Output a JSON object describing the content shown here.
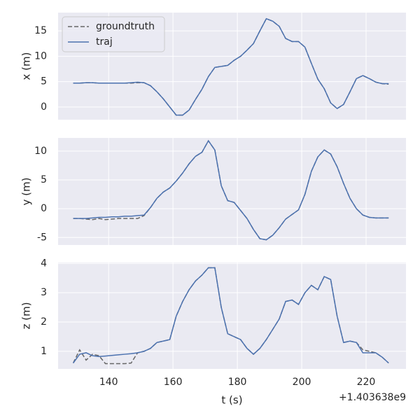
{
  "chart_data": [
    {
      "type": "line",
      "ylabel": "x (m)",
      "legend": "upper left",
      "grid": true,
      "x": [
        129,
        131,
        133,
        135,
        137,
        139,
        141,
        143,
        145,
        147,
        149,
        151,
        153,
        155,
        157,
        159,
        161,
        163,
        165,
        167,
        169,
        171,
        173,
        175,
        177,
        179,
        181,
        183,
        185,
        187,
        189,
        191,
        193,
        195,
        197,
        199,
        201,
        203,
        205,
        207,
        209,
        211,
        213,
        215,
        217,
        219,
        221,
        223,
        225,
        227
      ],
      "xlim": [
        124.3,
        232.4
      ],
      "xticks": [
        140,
        160,
        180,
        200,
        220
      ],
      "ylim": [
        -2.5,
        18.6
      ],
      "yticks": [
        0,
        5,
        10,
        15
      ],
      "series": [
        {
          "name": "groundtruth",
          "color": "#666666",
          "dashed": true,
          "values": [
            4.7,
            4.7,
            4.8,
            4.8,
            4.7,
            4.7,
            4.7,
            4.7,
            4.7,
            4.7,
            4.8,
            4.8,
            4.2,
            3.0,
            1.6,
            0.0,
            -1.6,
            -1.6,
            -0.6,
            1.5,
            3.5,
            6.0,
            7.8,
            8.0,
            8.2,
            9.2,
            10.0,
            11.2,
            12.5,
            15.0,
            17.4,
            16.9,
            15.9,
            13.5,
            12.9,
            12.9,
            11.8,
            8.6,
            5.5,
            3.6,
            0.8,
            -0.3,
            0.5,
            3.0,
            5.6,
            6.2,
            5.6,
            4.9,
            4.6,
            4.5
          ]
        },
        {
          "name": "traj",
          "color": "#4c72b0",
          "dashed": false,
          "values": [
            4.7,
            4.7,
            4.8,
            4.8,
            4.7,
            4.7,
            4.7,
            4.7,
            4.7,
            4.8,
            4.9,
            4.8,
            4.2,
            3.0,
            1.6,
            0.0,
            -1.6,
            -1.6,
            -0.6,
            1.5,
            3.5,
            6.0,
            7.8,
            8.0,
            8.2,
            9.2,
            10.0,
            11.2,
            12.5,
            15.0,
            17.4,
            16.9,
            15.9,
            13.5,
            12.9,
            12.9,
            11.8,
            8.6,
            5.5,
            3.6,
            0.8,
            -0.3,
            0.5,
            3.0,
            5.6,
            6.2,
            5.6,
            4.9,
            4.6,
            4.6
          ]
        }
      ]
    },
    {
      "type": "line",
      "ylabel": "y (m)",
      "grid": true,
      "x": [
        129,
        131,
        133,
        135,
        137,
        139,
        141,
        143,
        145,
        147,
        149,
        151,
        153,
        155,
        157,
        159,
        161,
        163,
        165,
        167,
        169,
        171,
        173,
        175,
        177,
        179,
        181,
        183,
        185,
        187,
        189,
        191,
        193,
        195,
        197,
        199,
        201,
        203,
        205,
        207,
        209,
        211,
        213,
        215,
        217,
        219,
        221,
        223,
        225,
        227
      ],
      "xlim": [
        124.3,
        232.4
      ],
      "xticks": [
        140,
        160,
        180,
        200,
        220
      ],
      "ylim": [
        -6.3,
        12.3
      ],
      "yticks": [
        -5,
        0,
        5,
        10
      ],
      "series": [
        {
          "name": "groundtruth",
          "color": "#666666",
          "dashed": true,
          "values": [
            -1.7,
            -1.7,
            -1.8,
            -1.9,
            -1.7,
            -1.9,
            -1.8,
            -1.7,
            -1.7,
            -1.7,
            -1.7,
            -1.2,
            0.2,
            1.8,
            2.9,
            3.6,
            4.8,
            6.2,
            7.8,
            9.1,
            9.8,
            11.8,
            10.2,
            4.0,
            1.4,
            1.1,
            -0.3,
            -1.7,
            -3.6,
            -5.2,
            -5.4,
            -4.6,
            -3.3,
            -1.8,
            -1.0,
            -0.2,
            2.5,
            6.5,
            9.0,
            10.2,
            9.5,
            7.3,
            4.4,
            1.8,
            0.0,
            -1.1,
            -1.5,
            -1.6,
            -1.6,
            -1.6
          ]
        },
        {
          "name": "traj",
          "color": "#4c72b0",
          "dashed": false,
          "values": [
            -1.7,
            -1.7,
            -1.7,
            -1.6,
            -1.5,
            -1.5,
            -1.4,
            -1.4,
            -1.3,
            -1.3,
            -1.2,
            -1.1,
            0.2,
            1.8,
            2.9,
            3.6,
            4.8,
            6.2,
            7.8,
            9.1,
            9.8,
            11.8,
            10.2,
            4.0,
            1.4,
            1.1,
            -0.3,
            -1.7,
            -3.6,
            -5.2,
            -5.4,
            -4.6,
            -3.3,
            -1.8,
            -1.0,
            -0.2,
            2.5,
            6.5,
            9.0,
            10.2,
            9.5,
            7.3,
            4.4,
            1.8,
            0.0,
            -1.1,
            -1.5,
            -1.6,
            -1.6,
            -1.6
          ]
        }
      ]
    },
    {
      "type": "line",
      "ylabel": "z (m)",
      "xlabel": "t (s)",
      "offset": "+1.403638e9",
      "grid": true,
      "x": [
        129,
        131,
        133,
        135,
        137,
        139,
        141,
        143,
        145,
        147,
        149,
        151,
        153,
        155,
        157,
        159,
        161,
        163,
        165,
        167,
        169,
        171,
        173,
        175,
        177,
        179,
        181,
        183,
        185,
        187,
        189,
        191,
        193,
        195,
        197,
        199,
        201,
        203,
        205,
        207,
        209,
        211,
        213,
        215,
        217,
        219,
        221,
        223,
        225,
        227
      ],
      "xlim": [
        124.3,
        232.4
      ],
      "xticks": [
        140,
        160,
        180,
        200,
        220
      ],
      "ylim": [
        0.4,
        4.03
      ],
      "yticks": [
        1,
        2,
        3,
        4
      ],
      "series": [
        {
          "name": "groundtruth",
          "color": "#666666",
          "dashed": true,
          "values": [
            0.6,
            1.05,
            0.7,
            0.9,
            0.85,
            0.58,
            0.58,
            0.58,
            0.58,
            0.6,
            0.95,
            1.0,
            1.1,
            1.3,
            1.35,
            1.4,
            2.2,
            2.7,
            3.1,
            3.4,
            3.6,
            3.85,
            3.85,
            2.5,
            1.6,
            1.5,
            1.4,
            1.1,
            0.9,
            1.1,
            1.4,
            1.75,
            2.1,
            2.7,
            2.75,
            2.6,
            3.0,
            3.25,
            3.1,
            3.55,
            3.45,
            2.2,
            1.3,
            1.35,
            1.3,
            1.05,
            1.0,
            0.95,
            0.8,
            0.6
          ]
        },
        {
          "name": "traj",
          "color": "#4c72b0",
          "dashed": false,
          "values": [
            0.6,
            0.9,
            0.95,
            0.85,
            0.82,
            0.84,
            0.86,
            0.88,
            0.9,
            0.92,
            0.95,
            1.0,
            1.1,
            1.3,
            1.35,
            1.4,
            2.2,
            2.7,
            3.1,
            3.4,
            3.6,
            3.85,
            3.85,
            2.5,
            1.6,
            1.5,
            1.4,
            1.1,
            0.9,
            1.1,
            1.4,
            1.75,
            2.1,
            2.7,
            2.75,
            2.6,
            3.0,
            3.25,
            3.1,
            3.55,
            3.45,
            2.2,
            1.3,
            1.35,
            1.3,
            0.95,
            0.95,
            0.95,
            0.8,
            0.6
          ]
        }
      ]
    }
  ]
}
